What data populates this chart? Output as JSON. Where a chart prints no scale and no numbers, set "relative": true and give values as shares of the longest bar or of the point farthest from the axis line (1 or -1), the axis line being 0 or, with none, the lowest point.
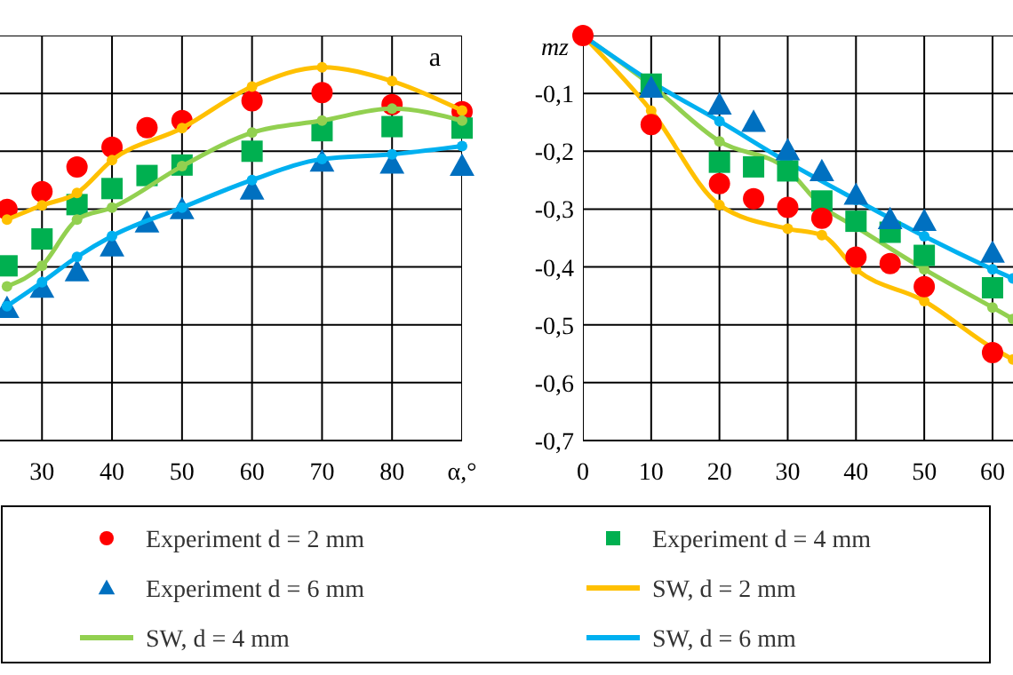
{
  "chart_data": [
    {
      "type": "line",
      "relative": true,
      "xlim": [
        24,
        90
      ],
      "xticks": [
        30,
        40,
        50,
        60,
        70,
        80,
        {
          "value": 90,
          "label": "α,°"
        }
      ],
      "grid": true,
      "legend": "bottom",
      "annotations": [
        "a"
      ],
      "series": [
        {
          "name": "Experiment d = 2 mm",
          "type": "scatter",
          "marker": "circle",
          "color": "#ff0000",
          "x": [
            25,
            30,
            35,
            40,
            45,
            50,
            60,
            70,
            80,
            90
          ],
          "values": [
            0.619,
            0.667,
            0.733,
            0.786,
            0.838,
            0.857,
            0.91,
            0.932,
            0.9,
            0.881
          ]
        },
        {
          "name": "Experiment d = 4 mm",
          "type": "scatter",
          "marker": "square",
          "color": "#00b050",
          "x": [
            25,
            30,
            35,
            40,
            45,
            50,
            60,
            70,
            80,
            90
          ],
          "values": [
            0.468,
            0.54,
            0.632,
            0.675,
            0.71,
            0.738,
            0.775,
            0.83,
            0.841,
            0.837
          ]
        },
        {
          "name": "Experiment d = 6 mm",
          "type": "scatter",
          "marker": "triangle",
          "color": "#0070c0",
          "x": [
            25,
            30,
            35,
            40,
            45,
            50,
            60,
            70,
            80,
            90
          ],
          "values": [
            0.354,
            0.408,
            0.452,
            0.519,
            0.583,
            0.619,
            0.671,
            0.746,
            0.741,
            0.735
          ]
        },
        {
          "name": "SW, d = 2 mm",
          "marker": "circle",
          "color": "#ffc000",
          "x": [
            25,
            30,
            35,
            40,
            50,
            60,
            70,
            80,
            90
          ],
          "values": [
            0.592,
            0.63,
            0.663,
            0.751,
            0.837,
            0.948,
            1.0,
            0.963,
            0.884
          ]
        },
        {
          "name": "SW, d = 4 mm",
          "marker": "circle",
          "color": "#92d050",
          "x": [
            25,
            30,
            35,
            40,
            50,
            60,
            70,
            80,
            90
          ],
          "values": [
            0.413,
            0.468,
            0.592,
            0.624,
            0.735,
            0.825,
            0.857,
            0.889,
            0.857
          ]
        },
        {
          "name": "SW, d = 6 mm",
          "marker": "circle",
          "color": "#00b0f0",
          "x": [
            25,
            30,
            35,
            40,
            50,
            60,
            70,
            80,
            90
          ],
          "values": [
            0.36,
            0.424,
            0.492,
            0.548,
            0.624,
            0.698,
            0.754,
            0.767,
            0.789
          ]
        }
      ]
    },
    {
      "type": "line",
      "ylabel": "mz",
      "xlim": [
        0,
        63
      ],
      "xticks": [
        0,
        10,
        20,
        30,
        40,
        50,
        60
      ],
      "ylim": [
        -0.7,
        0
      ],
      "yticks": [
        {
          "value": 0,
          "label": null
        },
        {
          "value": -0.1,
          "label": "-0,1"
        },
        {
          "value": -0.2,
          "label": "-0,2"
        },
        {
          "value": -0.3,
          "label": "-0,3"
        },
        {
          "value": -0.4,
          "label": "-0,4"
        },
        {
          "value": -0.5,
          "label": "-0,5"
        },
        {
          "value": -0.6,
          "label": "-0,6"
        },
        {
          "value": -0.7,
          "label": "-0,7"
        }
      ],
      "grid": true,
      "series": [
        {
          "marker": "circle",
          "color": "#ffc000",
          "x": [
            0,
            10,
            20,
            30,
            35,
            40,
            50,
            60,
            63
          ],
          "values": [
            0,
            -0.13,
            -0.293,
            -0.334,
            -0.345,
            -0.404,
            -0.459,
            -0.54,
            -0.56
          ]
        },
        {
          "marker": "circle",
          "color": "#92d050",
          "x": [
            0,
            10,
            20,
            30,
            35,
            40,
            50,
            60,
            63
          ],
          "values": [
            0,
            -0.086,
            -0.183,
            -0.232,
            -0.295,
            -0.331,
            -0.404,
            -0.47,
            -0.49
          ]
        },
        {
          "marker": "circle",
          "color": "#00b0f0",
          "x": [
            0,
            10,
            20,
            30,
            40,
            50,
            60,
            63
          ],
          "values": [
            0,
            -0.08,
            -0.148,
            -0.219,
            -0.284,
            -0.347,
            -0.404,
            -0.42
          ]
        },
        {
          "type": "scatter",
          "marker": "square",
          "color": "#00b050",
          "x": [
            10,
            20,
            25,
            30,
            35,
            40,
            45,
            50,
            60
          ],
          "values": [
            -0.084,
            -0.219,
            -0.227,
            -0.234,
            -0.286,
            -0.321,
            -0.34,
            -0.38,
            -0.436
          ]
        },
        {
          "type": "scatter",
          "marker": "triangle",
          "color": "#0070c0",
          "x": [
            10,
            20,
            25,
            30,
            35,
            40,
            45,
            50,
            60
          ],
          "values": [
            -0.091,
            -0.12,
            -0.15,
            -0.199,
            -0.235,
            -0.276,
            -0.318,
            -0.321,
            -0.376
          ]
        },
        {
          "type": "scatter",
          "marker": "circle",
          "color": "#ff0000",
          "x": [
            0,
            10,
            20,
            25,
            30,
            35,
            40,
            45,
            50,
            60
          ],
          "values": [
            0,
            -0.154,
            -0.256,
            -0.282,
            -0.297,
            -0.316,
            -0.383,
            -0.394,
            -0.434,
            -0.548
          ]
        }
      ]
    }
  ]
}
